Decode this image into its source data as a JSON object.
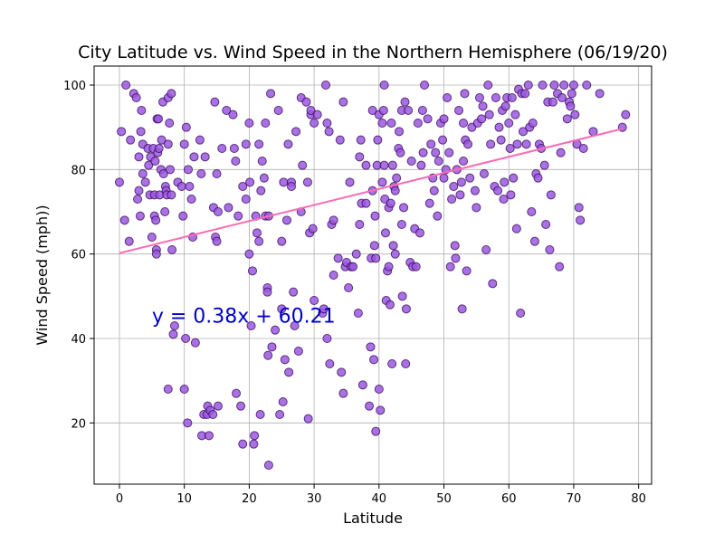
{
  "chart_data": {
    "type": "scatter",
    "title": "City Latitude vs. Wind Speed in the Northern Hemisphere (06/19/20)",
    "xlabel": "Latitude",
    "ylabel": "Wind Speed (mph))",
    "xlim": [
      -3.9,
      82
    ],
    "ylim": [
      5.5,
      104.5
    ],
    "xticks": [
      0,
      10,
      20,
      30,
      40,
      50,
      60,
      70,
      80
    ],
    "yticks": [
      20,
      40,
      60,
      80,
      100
    ],
    "grid": true,
    "point_fill": "#9b59e0",
    "point_edge": "#3d0a66",
    "line_color": "#ff69b4",
    "annotation_color": "#0000cc",
    "regression": {
      "slope": 0.38,
      "intercept": 60.21,
      "x_start": 0,
      "x_end": 77.5
    },
    "annotation": "y = 0.38x + 60.21",
    "annotation_pos": [
      5,
      45
    ],
    "points": [
      [
        0,
        77
      ],
      [
        0.3,
        89
      ],
      [
        0.8,
        68
      ],
      [
        1,
        100
      ],
      [
        1.5,
        63
      ],
      [
        1.7,
        87
      ],
      [
        2.2,
        98
      ],
      [
        2.6,
        97
      ],
      [
        2.8,
        73
      ],
      [
        3,
        83
      ],
      [
        3,
        75
      ],
      [
        3.2,
        69
      ],
      [
        3.3,
        89
      ],
      [
        3.4,
        94
      ],
      [
        3.6,
        86
      ],
      [
        3.6,
        79
      ],
      [
        4,
        77
      ],
      [
        4.4,
        85
      ],
      [
        4.5,
        81
      ],
      [
        4.7,
        74
      ],
      [
        4.8,
        83
      ],
      [
        5,
        64
      ],
      [
        5.2,
        85
      ],
      [
        5.4,
        74
      ],
      [
        5.4,
        69
      ],
      [
        5.5,
        82
      ],
      [
        5.6,
        68
      ],
      [
        5.7,
        61
      ],
      [
        5.7,
        60
      ],
      [
        5.8,
        92
      ],
      [
        5.9,
        84
      ],
      [
        6,
        92
      ],
      [
        6.1,
        85
      ],
      [
        6.2,
        74
      ],
      [
        6.4,
        80
      ],
      [
        6.5,
        87
      ],
      [
        6.7,
        96
      ],
      [
        6.8,
        79
      ],
      [
        7,
        70
      ],
      [
        7.1,
        76
      ],
      [
        7.2,
        75
      ],
      [
        7.3,
        74
      ],
      [
        7.5,
        28
      ],
      [
        7.5,
        97
      ],
      [
        7.5,
        86
      ],
      [
        7.7,
        91
      ],
      [
        7.8,
        80
      ],
      [
        8,
        98
      ],
      [
        8,
        74
      ],
      [
        8.1,
        61
      ],
      [
        8.3,
        41
      ],
      [
        8.5,
        43
      ],
      [
        9,
        77
      ],
      [
        9.6,
        76
      ],
      [
        9.8,
        69
      ],
      [
        10,
        86
      ],
      [
        10,
        28
      ],
      [
        10.2,
        40
      ],
      [
        10.3,
        90
      ],
      [
        10.5,
        20
      ],
      [
        10.6,
        80
      ],
      [
        10.8,
        76
      ],
      [
        11.1,
        73
      ],
      [
        11.3,
        64
      ],
      [
        11.5,
        83
      ],
      [
        11.7,
        39
      ],
      [
        12.4,
        87
      ],
      [
        12.6,
        79
      ],
      [
        12.7,
        17
      ],
      [
        13,
        22
      ],
      [
        13.2,
        83
      ],
      [
        13.5,
        22
      ],
      [
        13.6,
        24
      ],
      [
        13.8,
        17
      ],
      [
        14,
        23
      ],
      [
        14.4,
        22
      ],
      [
        14.5,
        71
      ],
      [
        14.7,
        96
      ],
      [
        14.8,
        64
      ],
      [
        15,
        63
      ],
      [
        15,
        79
      ],
      [
        15.2,
        24
      ],
      [
        15.2,
        70
      ],
      [
        15.8,
        85
      ],
      [
        16.5,
        94
      ],
      [
        16.8,
        71
      ],
      [
        17.5,
        93
      ],
      [
        17.7,
        85
      ],
      [
        17.9,
        82
      ],
      [
        18,
        27
      ],
      [
        18.3,
        69
      ],
      [
        18.7,
        24
      ],
      [
        19,
        76
      ],
      [
        19,
        15
      ],
      [
        19.5,
        86
      ],
      [
        19.5,
        73
      ],
      [
        20,
        91
      ],
      [
        20,
        60
      ],
      [
        20.1,
        77
      ],
      [
        20.3,
        43
      ],
      [
        20.5,
        56
      ],
      [
        20.7,
        15
      ],
      [
        20.8,
        17
      ],
      [
        21,
        69
      ],
      [
        21.2,
        65
      ],
      [
        21.5,
        86
      ],
      [
        21.5,
        63
      ],
      [
        21.7,
        22
      ],
      [
        21.8,
        75
      ],
      [
        22,
        82
      ],
      [
        22.3,
        78
      ],
      [
        22.5,
        91
      ],
      [
        22.5,
        69
      ],
      [
        22.8,
        52
      ],
      [
        22.8,
        51
      ],
      [
        22.9,
        36
      ],
      [
        23,
        10
      ],
      [
        23,
        69
      ],
      [
        23.3,
        98
      ],
      [
        23.5,
        38
      ],
      [
        24,
        42
      ],
      [
        24.5,
        94
      ],
      [
        24.7,
        22
      ],
      [
        25,
        63
      ],
      [
        25,
        47
      ],
      [
        25.2,
        25
      ],
      [
        25.3,
        77
      ],
      [
        25.5,
        35
      ],
      [
        25.8,
        68
      ],
      [
        26,
        86
      ],
      [
        26.1,
        32
      ],
      [
        26.5,
        77
      ],
      [
        26.5,
        76
      ],
      [
        26.8,
        51
      ],
      [
        27,
        43
      ],
      [
        27.2,
        89
      ],
      [
        27.6,
        37
      ],
      [
        28,
        97
      ],
      [
        28,
        70
      ],
      [
        28.2,
        81
      ],
      [
        28.8,
        96
      ],
      [
        29,
        77
      ],
      [
        29.1,
        21
      ],
      [
        29.3,
        65
      ],
      [
        29.5,
        93
      ],
      [
        29.5,
        94
      ],
      [
        29.8,
        66
      ],
      [
        30,
        49
      ],
      [
        30,
        91
      ],
      [
        30.5,
        93
      ],
      [
        31.3,
        46
      ],
      [
        31.5,
        47
      ],
      [
        31.8,
        100
      ],
      [
        32,
        40
      ],
      [
        32,
        91
      ],
      [
        32.3,
        89
      ],
      [
        32.4,
        34
      ],
      [
        32.7,
        67
      ],
      [
        33,
        55
      ],
      [
        33,
        68
      ],
      [
        33.7,
        59
      ],
      [
        34,
        87
      ],
      [
        34.2,
        32
      ],
      [
        34.5,
        96
      ],
      [
        34.5,
        27
      ],
      [
        34.8,
        57
      ],
      [
        35,
        58
      ],
      [
        35.3,
        52
      ],
      [
        35.5,
        77
      ],
      [
        35.7,
        57
      ],
      [
        36,
        57
      ],
      [
        36.5,
        60
      ],
      [
        36.8,
        46
      ],
      [
        37,
        83
      ],
      [
        37,
        67
      ],
      [
        37.2,
        87
      ],
      [
        37.3,
        72
      ],
      [
        37.5,
        29
      ],
      [
        38,
        81
      ],
      [
        38,
        72
      ],
      [
        38.5,
        24
      ],
      [
        38.7,
        38
      ],
      [
        38.8,
        59
      ],
      [
        39,
        75
      ],
      [
        39,
        94
      ],
      [
        39.2,
        35
      ],
      [
        39.3,
        62
      ],
      [
        39.4,
        69
      ],
      [
        39.5,
        59
      ],
      [
        39.5,
        18
      ],
      [
        39.7,
        81
      ],
      [
        39.8,
        87
      ],
      [
        40,
        28
      ],
      [
        40,
        93
      ],
      [
        40.2,
        23
      ],
      [
        40.5,
        77
      ],
      [
        40.5,
        91
      ],
      [
        40.7,
        94
      ],
      [
        40.8,
        100
      ],
      [
        40.8,
        81
      ],
      [
        40.9,
        73
      ],
      [
        41,
        65
      ],
      [
        41.1,
        49
      ],
      [
        41.3,
        56
      ],
      [
        41.5,
        57
      ],
      [
        41.5,
        71
      ],
      [
        41.7,
        48
      ],
      [
        41.8,
        72
      ],
      [
        41.9,
        91
      ],
      [
        42,
        34
      ],
      [
        42.1,
        81
      ],
      [
        42.2,
        62
      ],
      [
        42.3,
        76
      ],
      [
        42.5,
        60
      ],
      [
        42.5,
        75
      ],
      [
        42.7,
        78
      ],
      [
        43,
        85
      ],
      [
        43.1,
        89
      ],
      [
        43.3,
        84
      ],
      [
        43.5,
        94
      ],
      [
        43.5,
        67
      ],
      [
        43.6,
        50
      ],
      [
        43.8,
        71
      ],
      [
        44,
        96
      ],
      [
        44.1,
        34
      ],
      [
        44.2,
        47
      ],
      [
        44.5,
        94
      ],
      [
        44.8,
        58
      ],
      [
        45,
        82
      ],
      [
        45.2,
        57
      ],
      [
        45.5,
        66
      ],
      [
        45.7,
        57
      ],
      [
        46,
        91
      ],
      [
        46.3,
        65
      ],
      [
        46.5,
        81
      ],
      [
        46.7,
        94
      ],
      [
        46.8,
        84
      ],
      [
        47,
        100
      ],
      [
        47.5,
        92
      ],
      [
        47.8,
        72
      ],
      [
        48,
        86
      ],
      [
        48.3,
        78
      ],
      [
        48.5,
        75
      ],
      [
        48.7,
        84
      ],
      [
        49,
        69
      ],
      [
        49.2,
        82
      ],
      [
        49.5,
        91
      ],
      [
        49.8,
        87
      ],
      [
        50,
        92
      ],
      [
        50,
        78
      ],
      [
        50.3,
        80
      ],
      [
        50.5,
        97
      ],
      [
        50.8,
        84
      ],
      [
        51,
        57
      ],
      [
        51.2,
        73
      ],
      [
        51.5,
        76
      ],
      [
        51.7,
        62
      ],
      [
        51.8,
        59
      ],
      [
        52,
        80
      ],
      [
        52.3,
        94
      ],
      [
        52.5,
        74
      ],
      [
        52.7,
        77
      ],
      [
        52.8,
        47
      ],
      [
        53,
        82
      ],
      [
        53,
        91
      ],
      [
        53.2,
        98
      ],
      [
        53.3,
        87
      ],
      [
        53.5,
        56
      ],
      [
        53.7,
        86
      ],
      [
        54,
        78
      ],
      [
        54.3,
        90
      ],
      [
        54.8,
        75
      ],
      [
        55,
        71
      ],
      [
        55.2,
        91
      ],
      [
        55.5,
        97
      ],
      [
        55.8,
        92
      ],
      [
        56,
        95
      ],
      [
        56.2,
        79
      ],
      [
        56.5,
        61
      ],
      [
        56.8,
        100
      ],
      [
        57,
        93
      ],
      [
        57.2,
        86
      ],
      [
        57.5,
        53
      ],
      [
        57.8,
        76
      ],
      [
        58,
        97
      ],
      [
        58.3,
        75
      ],
      [
        58.5,
        90
      ],
      [
        58.8,
        87
      ],
      [
        59,
        94
      ],
      [
        59.2,
        73
      ],
      [
        59.3,
        77
      ],
      [
        59.5,
        95
      ],
      [
        59.7,
        97
      ],
      [
        60,
        91
      ],
      [
        60.2,
        85
      ],
      [
        60.3,
        74
      ],
      [
        60.5,
        97
      ],
      [
        60.7,
        78
      ],
      [
        61,
        93
      ],
      [
        61.2,
        66
      ],
      [
        61.3,
        86
      ],
      [
        61.5,
        99
      ],
      [
        61.8,
        46
      ],
      [
        62,
        98
      ],
      [
        62.2,
        89
      ],
      [
        62.5,
        98
      ],
      [
        62.7,
        86
      ],
      [
        63,
        100
      ],
      [
        63.2,
        90
      ],
      [
        63.5,
        70
      ],
      [
        63.7,
        91
      ],
      [
        64,
        63
      ],
      [
        64.2,
        79
      ],
      [
        64.5,
        78
      ],
      [
        64.7,
        86
      ],
      [
        65,
        85
      ],
      [
        65.2,
        100
      ],
      [
        65.5,
        81
      ],
      [
        65.7,
        67
      ],
      [
        66,
        96
      ],
      [
        66.3,
        61
      ],
      [
        66.5,
        74
      ],
      [
        66.8,
        96
      ],
      [
        67,
        100
      ],
      [
        67.5,
        98
      ],
      [
        67.8,
        57
      ],
      [
        68,
        84
      ],
      [
        68.2,
        97
      ],
      [
        68.5,
        100
      ],
      [
        69,
        92
      ],
      [
        69.3,
        96
      ],
      [
        69.5,
        95
      ],
      [
        69.7,
        98
      ],
      [
        70,
        100
      ],
      [
        70.2,
        93
      ],
      [
        70.5,
        86
      ],
      [
        70.8,
        71
      ],
      [
        71,
        68
      ],
      [
        71.5,
        85
      ],
      [
        72,
        100
      ],
      [
        73,
        89
      ],
      [
        74,
        98
      ],
      [
        77.5,
        90
      ],
      [
        78,
        93
      ]
    ]
  }
}
